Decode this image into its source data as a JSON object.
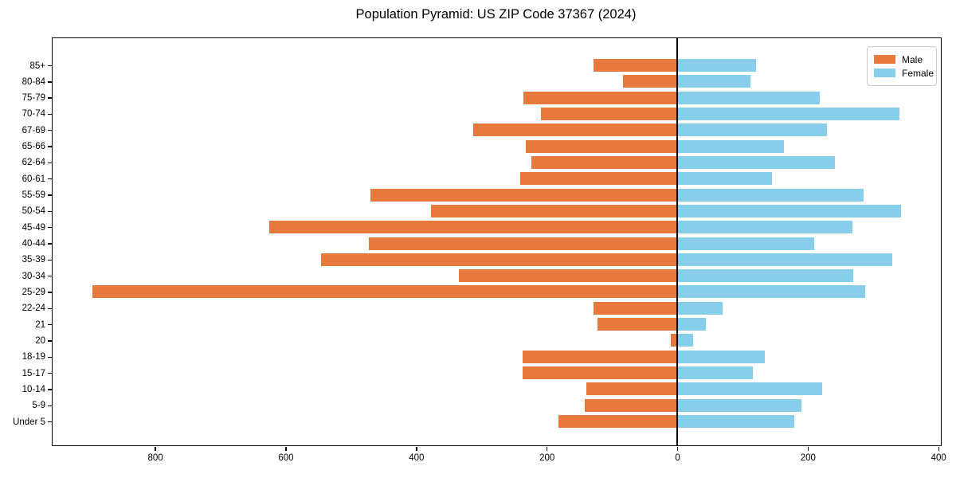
{
  "chart_data": {
    "type": "bar",
    "variant": "population-pyramid",
    "title": "Population Pyramid: US ZIP Code 37367 (2024)",
    "categories": [
      "85+",
      "80-84",
      "75-79",
      "70-74",
      "67-69",
      "65-66",
      "62-64",
      "60-61",
      "55-59",
      "50-54",
      "45-49",
      "40-44",
      "35-39",
      "30-34",
      "25-29",
      "22-24",
      "21",
      "20",
      "18-19",
      "15-17",
      "10-14",
      "5-9",
      "Under 5"
    ],
    "series": [
      {
        "name": "Male",
        "color": "#e8793d",
        "direction": "left",
        "values": [
          128,
          83,
          236,
          209,
          313,
          232,
          224,
          241,
          470,
          377,
          625,
          473,
          546,
          334,
          896,
          128,
          122,
          10,
          237,
          237,
          139,
          142,
          182
        ]
      },
      {
        "name": "Female",
        "color": "#87ceeb",
        "direction": "right",
        "values": [
          121,
          112,
          218,
          340,
          230,
          163,
          242,
          145,
          285,
          343,
          268,
          210,
          330,
          270,
          288,
          70,
          44,
          24,
          134,
          116,
          222,
          190,
          180
        ]
      }
    ],
    "xlim": [
      -957,
      404
    ],
    "xticks": {
      "values": [
        -800,
        -600,
        -400,
        -200,
        0,
        200,
        400
      ],
      "labels": [
        "800",
        "600",
        "400",
        "200",
        "0",
        "200",
        "400"
      ]
    },
    "grid": false,
    "zero_line": true,
    "legend_position": "upper-right",
    "axis_color": "#000000",
    "background_color": "#ffffff"
  }
}
